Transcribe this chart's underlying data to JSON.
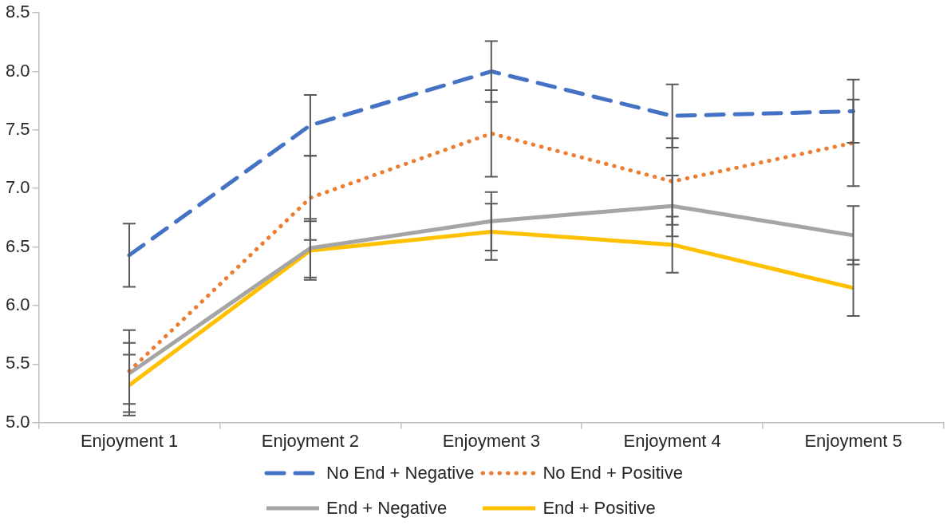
{
  "chart_data": {
    "type": "line",
    "categories": [
      "Enjoyment 1",
      "Enjoyment 2",
      "Enjoyment 3",
      "Enjoyment 4",
      "Enjoyment 5"
    ],
    "series": [
      {
        "name": "No End + Negative",
        "color": "#4472c4",
        "line_style": "dashed",
        "values": [
          6.43,
          7.54,
          8.0,
          7.62,
          7.66
        ],
        "errors": [
          0.27,
          0.26,
          0.26,
          0.27,
          0.27
        ]
      },
      {
        "name": "No End + Positive",
        "color": "#ed7d31",
        "line_style": "dotted",
        "values": [
          5.44,
          6.92,
          7.47,
          7.06,
          7.39
        ],
        "errors": [
          0.35,
          0.36,
          0.37,
          0.37,
          0.37
        ]
      },
      {
        "name": "End + Negative",
        "color": "#a5a5a5",
        "line_style": "solid",
        "values": [
          5.42,
          6.49,
          6.72,
          6.85,
          6.6
        ],
        "errors": [
          0.26,
          0.25,
          0.25,
          0.26,
          0.25
        ]
      },
      {
        "name": "End + Positive",
        "color": "#ffc000",
        "line_style": "solid",
        "values": [
          5.32,
          6.47,
          6.63,
          6.52,
          6.15
        ],
        "errors": [
          0.26,
          0.25,
          0.24,
          0.24,
          0.24
        ]
      }
    ],
    "ylim": [
      5.0,
      8.5
    ],
    "yticks": [
      {
        "value": 5,
        "label": "5.0"
      },
      {
        "value": 5.5,
        "label": "5.5"
      },
      {
        "value": 6,
        "label": "6.0"
      },
      {
        "value": 6.5,
        "label": "6.5"
      },
      {
        "value": 7,
        "label": "7.0"
      },
      {
        "value": 7.5,
        "label": "7.5"
      },
      {
        "value": 8,
        "label": "8.0"
      },
      {
        "value": 8.5,
        "label": "8.5"
      }
    ],
    "grid": false,
    "legend": "bottom",
    "marker": "none"
  }
}
